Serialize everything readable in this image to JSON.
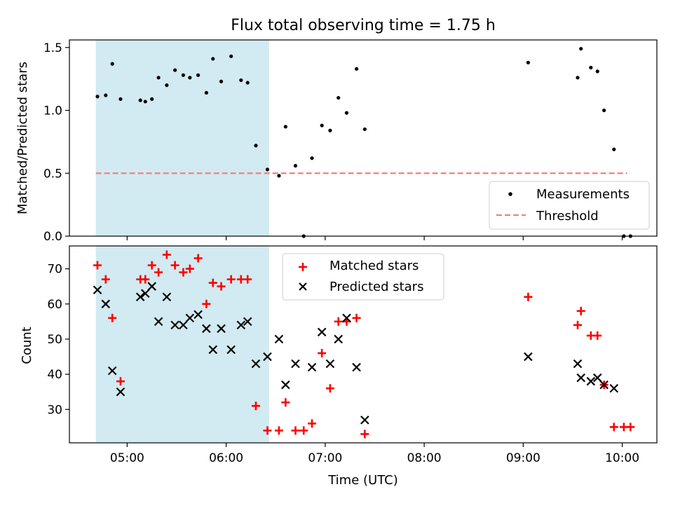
{
  "chart_data": [
    {
      "type": "scatter",
      "title": "Flux total observing time = 1.75 h",
      "xlabel": "",
      "ylabel": "Matched/Predicted stars",
      "ylim": [
        0,
        1.56
      ],
      "xlim": [
        "04:25",
        "10:21"
      ],
      "yticks": [
        0.0,
        0.5,
        1.0,
        1.5
      ],
      "ytick_labels": [
        "0.0",
        "0.5",
        "1.0",
        "1.5"
      ],
      "grid": false,
      "shaded_interval": [
        "04:41",
        "06:26"
      ],
      "threshold": 0.5,
      "x_range_threshold": [
        "04:41",
        "10:03"
      ],
      "legend": {
        "placement": "lower right",
        "entries": [
          "Measurements",
          "Threshold"
        ]
      },
      "series": [
        {
          "name": "Measurements",
          "color": "#000000",
          "marker": "dot",
          "points": [
            [
              "04:42",
              1.11
            ],
            [
              "04:47",
              1.12
            ],
            [
              "04:51",
              1.37
            ],
            [
              "04:56",
              1.09
            ],
            [
              "05:08",
              1.08
            ],
            [
              "05:11",
              1.07
            ],
            [
              "05:15",
              1.09
            ],
            [
              "05:19",
              1.26
            ],
            [
              "05:24",
              1.2
            ],
            [
              "05:29",
              1.32
            ],
            [
              "05:34",
              1.28
            ],
            [
              "05:38",
              1.26
            ],
            [
              "05:43",
              1.28
            ],
            [
              "05:48",
              1.14
            ],
            [
              "05:52",
              1.41
            ],
            [
              "05:57",
              1.23
            ],
            [
              "06:03",
              1.43
            ],
            [
              "06:09",
              1.24
            ],
            [
              "06:13",
              1.22
            ],
            [
              "06:18",
              0.72
            ],
            [
              "06:25",
              0.53
            ],
            [
              "06:32",
              0.48
            ],
            [
              "06:36",
              0.87
            ],
            [
              "06:42",
              0.56
            ],
            [
              "06:47",
              0.0
            ],
            [
              "06:52",
              0.62
            ],
            [
              "06:58",
              0.88
            ],
            [
              "07:03",
              0.84
            ],
            [
              "07:08",
              1.1
            ],
            [
              "07:13",
              0.98
            ],
            [
              "07:19",
              1.33
            ],
            [
              "07:24",
              0.85
            ],
            [
              "09:03",
              1.38
            ],
            [
              "09:33",
              1.26
            ],
            [
              "09:35",
              1.49
            ],
            [
              "09:41",
              1.34
            ],
            [
              "09:45",
              1.31
            ],
            [
              "09:49",
              1.0
            ],
            [
              "09:55",
              0.69
            ],
            [
              "10:01",
              0.0
            ],
            [
              "10:05",
              0.0
            ]
          ]
        },
        {
          "name": "Threshold",
          "color": "#f08080",
          "marker": "dashed-line"
        }
      ]
    },
    {
      "type": "scatter",
      "title": "",
      "xlabel": "Time (UTC)",
      "ylabel": "Count",
      "ylim": [
        20.5,
        76.5
      ],
      "xlim": [
        "04:25",
        "10:21"
      ],
      "xticks": [
        "05:00",
        "06:00",
        "07:00",
        "08:00",
        "09:00",
        "10:00"
      ],
      "yticks": [
        30,
        40,
        50,
        60,
        70
      ],
      "ytick_labels": [
        "30",
        "40",
        "50",
        "60",
        "70"
      ],
      "grid": false,
      "shaded_interval": [
        "04:41",
        "06:26"
      ],
      "legend": {
        "placement": "upper center",
        "entries": [
          "Matched stars",
          "Predicted stars"
        ]
      },
      "series": [
        {
          "name": "Matched stars",
          "color": "#ff0000",
          "marker": "plus",
          "points": [
            [
              "04:42",
              71
            ],
            [
              "04:47",
              67
            ],
            [
              "04:51",
              56
            ],
            [
              "04:56",
              38
            ],
            [
              "05:08",
              67
            ],
            [
              "05:11",
              67
            ],
            [
              "05:15",
              71
            ],
            [
              "05:19",
              69
            ],
            [
              "05:24",
              74
            ],
            [
              "05:29",
              71
            ],
            [
              "05:34",
              69
            ],
            [
              "05:38",
              70
            ],
            [
              "05:43",
              73
            ],
            [
              "05:48",
              60
            ],
            [
              "05:52",
              66
            ],
            [
              "05:57",
              65
            ],
            [
              "06:03",
              67
            ],
            [
              "06:09",
              67
            ],
            [
              "06:13",
              67
            ],
            [
              "06:18",
              31
            ],
            [
              "06:25",
              24
            ],
            [
              "06:32",
              24
            ],
            [
              "06:36",
              32
            ],
            [
              "06:42",
              24
            ],
            [
              "06:47",
              24
            ],
            [
              "06:52",
              26
            ],
            [
              "06:58",
              46
            ],
            [
              "07:03",
              36
            ],
            [
              "07:08",
              55
            ],
            [
              "07:13",
              55
            ],
            [
              "07:19",
              56
            ],
            [
              "07:24",
              23
            ],
            [
              "09:03",
              62
            ],
            [
              "09:33",
              54
            ],
            [
              "09:35",
              58
            ],
            [
              "09:41",
              51
            ],
            [
              "09:45",
              51
            ],
            [
              "09:49",
              37
            ],
            [
              "09:55",
              25
            ],
            [
              "10:01",
              25
            ],
            [
              "10:05",
              25
            ]
          ]
        },
        {
          "name": "Predicted stars",
          "color": "#000000",
          "marker": "x",
          "points": [
            [
              "04:42",
              64
            ],
            [
              "04:47",
              60
            ],
            [
              "04:51",
              41
            ],
            [
              "04:56",
              35
            ],
            [
              "05:08",
              62
            ],
            [
              "05:11",
              63
            ],
            [
              "05:15",
              65
            ],
            [
              "05:19",
              55
            ],
            [
              "05:24",
              62
            ],
            [
              "05:29",
              54
            ],
            [
              "05:34",
              54
            ],
            [
              "05:38",
              56
            ],
            [
              "05:43",
              57
            ],
            [
              "05:48",
              53
            ],
            [
              "05:52",
              47
            ],
            [
              "05:57",
              53
            ],
            [
              "06:03",
              47
            ],
            [
              "06:09",
              54
            ],
            [
              "06:13",
              55
            ],
            [
              "06:18",
              43
            ],
            [
              "06:25",
              45
            ],
            [
              "06:32",
              50
            ],
            [
              "06:36",
              37
            ],
            [
              "06:42",
              43
            ],
            [
              "06:52",
              42
            ],
            [
              "06:58",
              52
            ],
            [
              "07:03",
              43
            ],
            [
              "07:08",
              50
            ],
            [
              "07:13",
              56
            ],
            [
              "07:19",
              42
            ],
            [
              "07:24",
              27
            ],
            [
              "09:03",
              45
            ],
            [
              "09:33",
              43
            ],
            [
              "09:35",
              39
            ],
            [
              "09:41",
              38
            ],
            [
              "09:45",
              39
            ],
            [
              "09:49",
              37
            ],
            [
              "09:55",
              36
            ]
          ]
        }
      ]
    }
  ]
}
